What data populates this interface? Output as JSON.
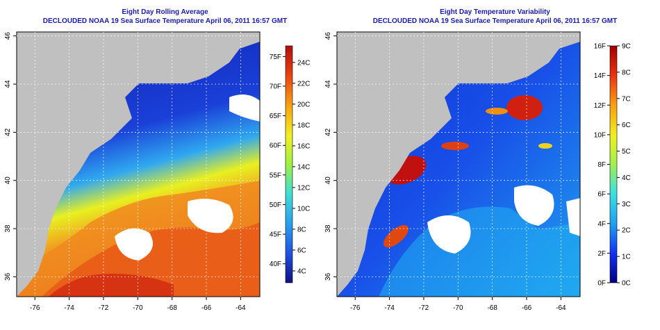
{
  "panels": [
    {
      "title": "Eight Day Rolling Average",
      "subtitle": "DECLOUDED NOAA 19 Sea Surface Temperature April 06, 2011 16:57 GMT",
      "x_ticks": [
        "-76",
        "-74",
        "-72",
        "-70",
        "-68",
        "-66",
        "-64"
      ],
      "y_ticks": [
        "36",
        "38",
        "40",
        "42",
        "44",
        "46"
      ],
      "colorbar": {
        "colors": [
          "#101080",
          "#1e50e0",
          "#28a0f0",
          "#40e0d0",
          "#a0f040",
          "#f0f020",
          "#f8a010",
          "#e84010",
          "#b01010"
        ],
        "left_labels": [
          "40F",
          "45F",
          "50F",
          "55F",
          "60F",
          "65F",
          "70F",
          "75F"
        ],
        "right_labels": [
          "4C",
          "6C",
          "8C",
          "10C",
          "12C",
          "14C",
          "16C",
          "18C",
          "20C",
          "22C",
          "24C"
        ]
      }
    },
    {
      "title": "Eight Day Temperature Variability",
      "subtitle": "DECLOUDED NOAA 19 Sea Surface Temperature April 06, 2011 16:57 GMT",
      "x_ticks": [
        "-76",
        "-74",
        "-72",
        "-70",
        "-68",
        "-66",
        "-64"
      ],
      "y_ticks": [
        "36",
        "38",
        "40",
        "42",
        "44",
        "46"
      ],
      "colorbar": {
        "colors": [
          "#000080",
          "#1030f0",
          "#20a0f0",
          "#40e0e0",
          "#a0f050",
          "#f0f020",
          "#f8a010",
          "#e83010",
          "#a00000"
        ],
        "left_labels": [
          "0F",
          "2F",
          "4F",
          "6F",
          "8F",
          "10F",
          "12F",
          "14F",
          "16F"
        ],
        "right_labels": [
          "0C",
          "1C",
          "2C",
          "3C",
          "4C",
          "5C",
          "6C",
          "7C",
          "8C",
          "9C"
        ]
      }
    }
  ],
  "colors": {
    "land": "#c0c0c0",
    "title": "#1a1ab0",
    "ocean_cold": "#1030d0",
    "ocean_warm": "#e84010"
  }
}
